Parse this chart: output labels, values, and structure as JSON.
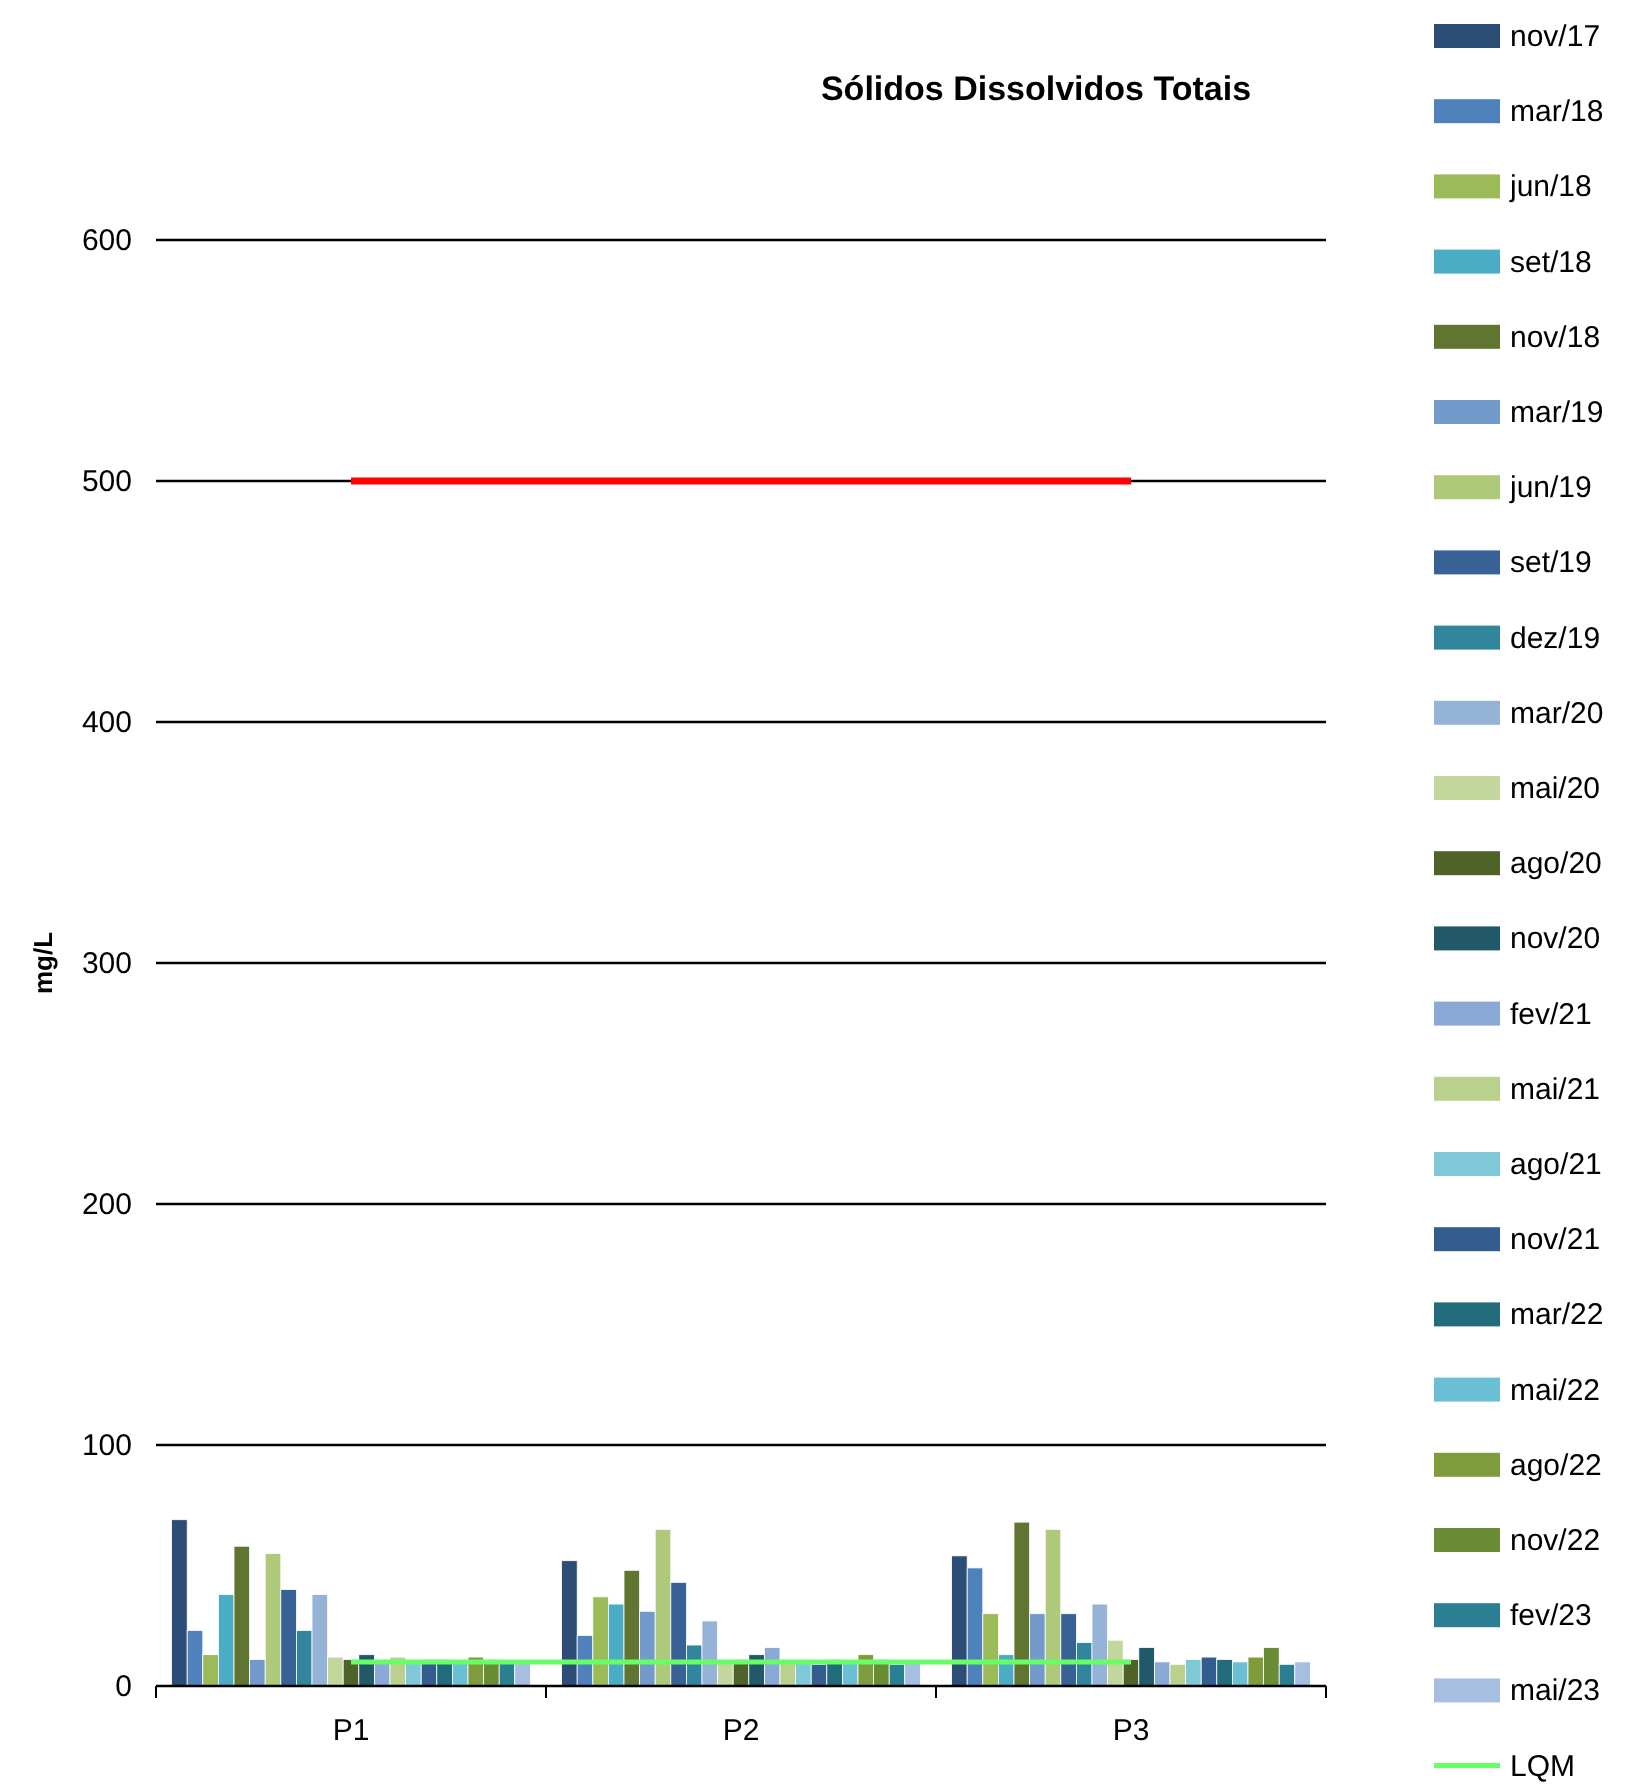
{
  "chart_data": {
    "type": "bar",
    "title": "Sólidos Dissolvidos Totais",
    "ylabel": "mg/L",
    "categories": [
      "P1",
      "P2",
      "P3"
    ],
    "ylim": [
      0,
      600
    ],
    "yticks": [
      0,
      100,
      200,
      300,
      400,
      500,
      600
    ],
    "grid": "y",
    "legend": "right",
    "series": [
      {
        "name": "nov/17",
        "color": "#2c4d75",
        "values": [
          69,
          52,
          54
        ]
      },
      {
        "name": "mar/18",
        "color": "#4f81bd",
        "values": [
          23,
          21,
          49
        ]
      },
      {
        "name": "jun/18",
        "color": "#9bbb59",
        "values": [
          13,
          37,
          30
        ]
      },
      {
        "name": "set/18",
        "color": "#4bacc6",
        "values": [
          38,
          34,
          13
        ]
      },
      {
        "name": "nov/18",
        "color": "#5f7530",
        "values": [
          58,
          48,
          68
        ]
      },
      {
        "name": "mar/19",
        "color": "#729aca",
        "values": [
          11,
          31,
          30
        ]
      },
      {
        "name": "jun/19",
        "color": "#afc97a",
        "values": [
          55,
          65,
          65
        ]
      },
      {
        "name": "set/19",
        "color": "#386295",
        "values": [
          40,
          43,
          30
        ]
      },
      {
        "name": "dez/19",
        "color": "#31859c",
        "values": [
          23,
          17,
          18
        ]
      },
      {
        "name": "mar/20",
        "color": "#95b3d7",
        "values": [
          38,
          27,
          34
        ]
      },
      {
        "name": "mai/20",
        "color": "#c3d69b",
        "values": [
          12,
          11,
          19
        ]
      },
      {
        "name": "ago/20",
        "color": "#4f6228",
        "values": [
          11,
          11,
          11
        ]
      },
      {
        "name": "nov/20",
        "color": "#215968",
        "values": [
          13,
          13,
          16
        ]
      },
      {
        "name": "fev/21",
        "color": "#8aa9d6",
        "values": [
          11,
          16,
          10
        ]
      },
      {
        "name": "mai/21",
        "color": "#b9d18c",
        "values": [
          12,
          11,
          9
        ]
      },
      {
        "name": "ago/21",
        "color": "#7fc8d8",
        "values": [
          11,
          11,
          11
        ]
      },
      {
        "name": "nov/21",
        "color": "#345d8f",
        "values": [
          11,
          9,
          12
        ]
      },
      {
        "name": "mar/22",
        "color": "#226b7a",
        "values": [
          11,
          11,
          11
        ]
      },
      {
        "name": "mai/22",
        "color": "#6bbfd4",
        "values": [
          10,
          10,
          10
        ]
      },
      {
        "name": "ago/22",
        "color": "#7f9c3c",
        "values": [
          12,
          13,
          12
        ]
      },
      {
        "name": "nov/22",
        "color": "#6a8c35",
        "values": [
          11,
          11,
          16
        ]
      },
      {
        "name": "fev/23",
        "color": "#2b7f93",
        "values": [
          10,
          9,
          9
        ]
      },
      {
        "name": "mai/23",
        "color": "#a6bfe0",
        "values": [
          10,
          10,
          10
        ]
      },
      {
        "type": "line",
        "color": "#ff0000",
        "values": [
          500,
          500,
          500
        ]
      },
      {
        "type": "line",
        "name": "LQM",
        "color": "#66ff66",
        "values": [
          10,
          10,
          10
        ]
      }
    ]
  }
}
